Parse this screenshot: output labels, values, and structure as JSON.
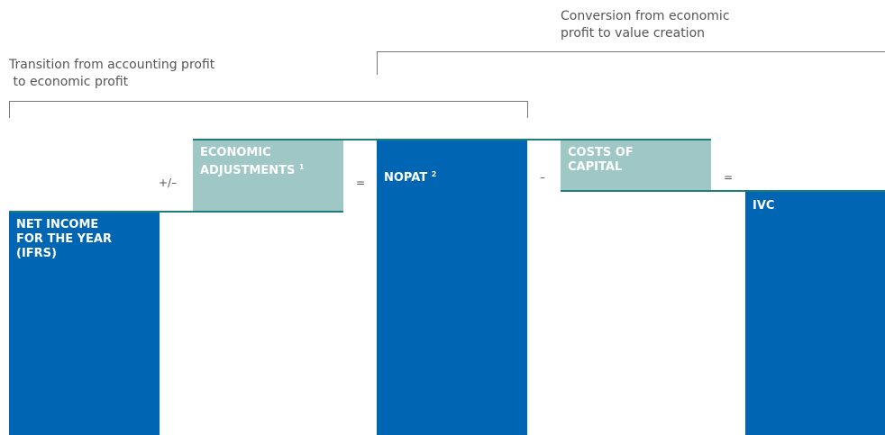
{
  "brackets": [
    {
      "lines": [
        "Transition from accounting profit",
        " to economic profit"
      ]
    },
    {
      "lines": [
        "Conversion from economic",
        "profit to value creation"
      ]
    }
  ],
  "boxes": [
    {
      "lines": [
        "NET INCOME",
        "FOR THE YEAR",
        "(IFRS)"
      ]
    },
    {
      "lines": [
        "ECONOMIC",
        "ADJUSTMENTS"
      ],
      "note": "1"
    },
    {
      "lines": [
        "NOPAT"
      ],
      "note": "2"
    },
    {
      "lines": [
        "COSTS OF",
        "CAPITAL"
      ]
    },
    {
      "lines": [
        "IVC"
      ]
    }
  ],
  "operators": [
    "+/–",
    "=",
    "–",
    "="
  ]
}
